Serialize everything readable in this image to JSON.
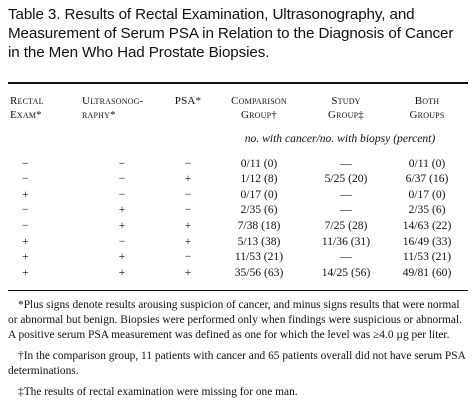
{
  "title": "Table 3. Results of Rectal Examination, Ultrasonography, and Measurement of Serum PSA in Relation to the Diagnosis of Cancer in the Men Who Had Prostate Biopsies.",
  "columns": [
    {
      "line1": "Rectal",
      "line2": "Exam*"
    },
    {
      "line1": "Ultrasonog-",
      "line2": "raphy*"
    },
    {
      "line1": "PSA*",
      "line2": ""
    },
    {
      "line1": "Comparison",
      "line2": "Group†"
    },
    {
      "line1": "Study",
      "line2": "Group‡"
    },
    {
      "line1": "Both",
      "line2": "Groups"
    }
  ],
  "units_label": "no. with cancer/no. with biopsy (percent)",
  "rows": [
    {
      "rectal": "−",
      "ultra": "−",
      "psa": "−",
      "comparison": "0/11 (0)",
      "study": "—",
      "both": "0/11 (0)"
    },
    {
      "rectal": "−",
      "ultra": "−",
      "psa": "+",
      "comparison": "1/12 (8)",
      "study": "5/25 (20)",
      "both": "6/37 (16)"
    },
    {
      "rectal": "+",
      "ultra": "−",
      "psa": "−",
      "comparison": "0/17 (0)",
      "study": "—",
      "both": "0/17 (0)"
    },
    {
      "rectal": "−",
      "ultra": "+",
      "psa": "−",
      "comparison": "2/35 (6)",
      "study": "—",
      "both": "2/35 (6)"
    },
    {
      "rectal": "−",
      "ultra": "+",
      "psa": "+",
      "comparison": "7/38 (18)",
      "study": "7/25 (28)",
      "both": "14/63 (22)"
    },
    {
      "rectal": "+",
      "ultra": "−",
      "psa": "+",
      "comparison": "5/13 (38)",
      "study": "11/36 (31)",
      "both": "16/49 (33)"
    },
    {
      "rectal": "+",
      "ultra": "+",
      "psa": "−",
      "comparison": "11/53 (21)",
      "study": "—",
      "both": "11/53 (21)"
    },
    {
      "rectal": "+",
      "ultra": "+",
      "psa": "+",
      "comparison": "35/56 (63)",
      "study": "14/25 (56)",
      "both": "49/81 (60)"
    }
  ],
  "footnotes": [
    "*Plus signs denote results arousing suspicion of cancer, and minus signs results that were normal or abnormal but benign. Biopsies were performed only when findings were suspicious or abnormal. A positive serum PSA measurement was defined as one for which the level was ≥4.0 µg per liter.",
    "†In the comparison group, 11 patients with cancer and 65 patients overall did not have serum PSA determinations.",
    "‡The results of rectal examination were missing for one man."
  ]
}
